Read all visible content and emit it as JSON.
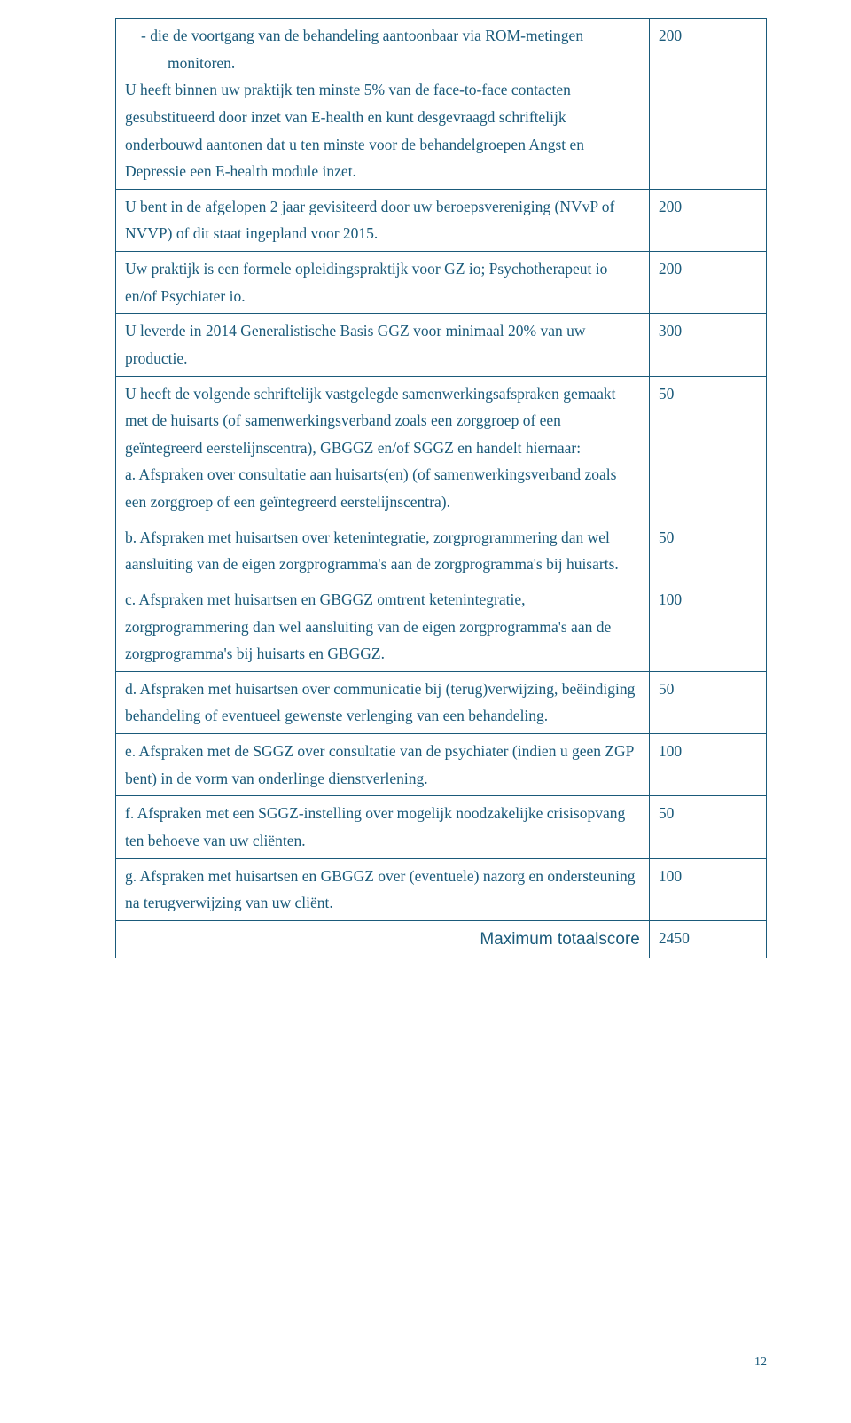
{
  "colors": {
    "text": "#1a5a7a",
    "border": "#1a5a7a",
    "background": "#ffffff"
  },
  "rows": [
    {
      "left_pre": "-    die de voortgang van de behandeling aantoonbaar via ROM-metingen monitoren.",
      "left": "U heeft binnen uw praktijk ten minste 5% van de face-to-face contacten gesubstitueerd door inzet van E-health en kunt desgevraagd schriftelijk onderbouwd aantonen dat u ten minste voor de behandelgroepen Angst en Depressie een E-health module inzet.",
      "right": "200"
    },
    {
      "left": "U bent in de afgelopen 2 jaar gevisiteerd door uw beroepsvereniging (NVvP of NVVP) of dit staat ingepland voor 2015.",
      "right": "200"
    },
    {
      "left": "Uw praktijk is een formele opleidingspraktijk voor GZ io; Psychotherapeut io en/of Psychiater io.",
      "right": "200"
    },
    {
      "left": "U leverde in 2014 Generalistische Basis GGZ voor minimaal 20% van uw productie.",
      "right": "300"
    },
    {
      "left_pre2": "U heeft de volgende schriftelijk vastgelegde samenwerkingsafspraken gemaakt met de huisarts (of samenwerkingsverband zoals een zorggroep of een geïntegreerd eerstelijnscentra), GBGGZ en/of SGGZ  en handelt hiernaar:",
      "left": "a.    Afspraken over consultatie aan huisarts(en) (of samenwerkingsverband zoals een zorggroep of een geïntegreerd eerstelijnscentra).",
      "right": "50"
    },
    {
      "left": "b.    Afspraken met huisartsen over ketenintegratie, zorgprogrammering dan wel aansluiting van de eigen zorgprogramma's aan de zorgprogramma's bij huisarts.",
      "right": "50"
    },
    {
      "left": "c.    Afspraken met huisartsen en GBGGZ omtrent ketenintegratie, zorgprogrammering dan wel aansluiting van de eigen zorgprogramma's aan de zorgprogramma's bij huisarts en GBGGZ.",
      "right": "100"
    },
    {
      "left": "d.    Afspraken met huisartsen over communicatie bij (terug)verwijzing, beëindiging behandeling of eventueel gewenste verlenging van een behandeling.",
      "right": "50"
    },
    {
      "left": "e.    Afspraken met de SGGZ over consultatie van de psychiater (indien u geen ZGP bent) in de vorm van onderlinge dienstverlening.",
      "right": "100"
    },
    {
      "left": "f.    Afspraken met een SGGZ-instelling over mogelijk noodzakelijke crisisopvang ten behoeve van uw cliënten.",
      "right": "50"
    },
    {
      "left": "g.    Afspraken met huisartsen en GBGGZ over (eventuele) nazorg en ondersteuning na terugverwijzing van uw cliënt.",
      "right": "100"
    }
  ],
  "total": {
    "label": "Maximum totaalscore",
    "value": "2450"
  },
  "page_number": "12"
}
